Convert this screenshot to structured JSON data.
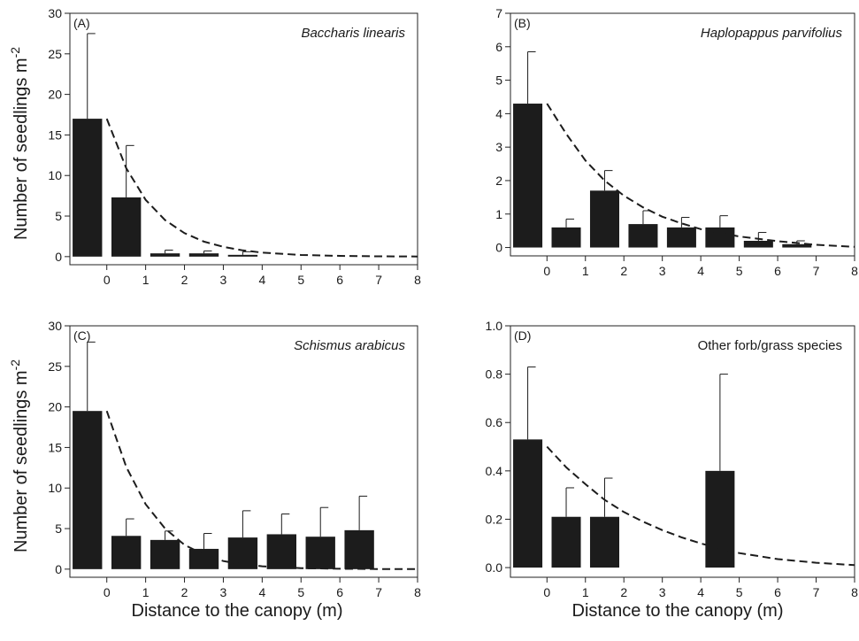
{
  "figure": {
    "ylabel": "Number of seedlings m-2",
    "ylabel_main": "Number of seedlings m",
    "ylabel_sup": "-2",
    "xlabel": "Distance to the canopy (m)"
  },
  "chart_data": [
    {
      "type": "bar",
      "panel_label": "(A)",
      "title": "Baccharis linearis",
      "title_italic": true,
      "x": [
        0,
        1,
        2,
        3,
        4
      ],
      "values": [
        17,
        7.3,
        0.4,
        0.4,
        0.2
      ],
      "errors": [
        10.5,
        6.4,
        0.4,
        0.3,
        0.4
      ],
      "fit_curve": [
        {
          "x": 0,
          "y": 17.0
        },
        {
          "x": 0.5,
          "y": 10.9
        },
        {
          "x": 1,
          "y": 7.0
        },
        {
          "x": 1.5,
          "y": 4.5
        },
        {
          "x": 2,
          "y": 2.9
        },
        {
          "x": 2.5,
          "y": 1.85
        },
        {
          "x": 3,
          "y": 1.2
        },
        {
          "x": 3.5,
          "y": 0.77
        },
        {
          "x": 4,
          "y": 0.5
        },
        {
          "x": 5,
          "y": 0.2
        },
        {
          "x": 6,
          "y": 0.09
        },
        {
          "x": 7,
          "y": 0.04
        },
        {
          "x": 8,
          "y": 0.02
        }
      ],
      "xticks": [
        0,
        1,
        2,
        3,
        4,
        5,
        6,
        7,
        8
      ],
      "yticks": [
        0,
        5,
        10,
        15,
        20,
        25,
        30
      ],
      "xlim": [
        -0.95,
        8
      ],
      "ylim": [
        -1,
        30
      ]
    },
    {
      "type": "bar",
      "panel_label": "(B)",
      "title": "Haplopappus parvifolius",
      "title_italic": true,
      "x": [
        0,
        1,
        2,
        3,
        4,
        5,
        6,
        7
      ],
      "values": [
        4.3,
        0.6,
        1.7,
        0.7,
        0.6,
        0.6,
        0.2,
        0.1
      ],
      "errors": [
        1.55,
        0.25,
        0.6,
        0.4,
        0.3,
        0.35,
        0.25,
        0.1
      ],
      "fit_curve": [
        {
          "x": 0,
          "y": 4.3
        },
        {
          "x": 0.5,
          "y": 3.4
        },
        {
          "x": 1,
          "y": 2.6
        },
        {
          "x": 1.5,
          "y": 2.0
        },
        {
          "x": 2,
          "y": 1.55
        },
        {
          "x": 2.5,
          "y": 1.2
        },
        {
          "x": 3,
          "y": 0.92
        },
        {
          "x": 3.5,
          "y": 0.72
        },
        {
          "x": 4,
          "y": 0.55
        },
        {
          "x": 5,
          "y": 0.33
        },
        {
          "x": 6,
          "y": 0.19
        },
        {
          "x": 7,
          "y": 0.08
        },
        {
          "x": 8,
          "y": 0.02
        }
      ],
      "xticks": [
        0,
        1,
        2,
        3,
        4,
        5,
        6,
        7,
        8
      ],
      "yticks": [
        0,
        1,
        2,
        3,
        4,
        5,
        6,
        7
      ],
      "xlim": [
        -0.95,
        8
      ],
      "ylim": [
        -0.25,
        7
      ]
    },
    {
      "type": "bar",
      "panel_label": "(C)",
      "title": "Schismus arabicus",
      "title_italic": true,
      "x": [
        0,
        1,
        2,
        3,
        4,
        5,
        6,
        7
      ],
      "values": [
        19.5,
        4.1,
        3.6,
        2.5,
        3.9,
        4.3,
        4.0,
        4.8
      ],
      "errors": [
        8.5,
        2.1,
        1.1,
        1.9,
        3.3,
        2.5,
        3.6,
        4.2
      ],
      "fit_curve": [
        {
          "x": 0,
          "y": 19.5
        },
        {
          "x": 0.5,
          "y": 12.6
        },
        {
          "x": 1,
          "y": 8.0
        },
        {
          "x": 1.5,
          "y": 5.0
        },
        {
          "x": 2,
          "y": 3.0
        },
        {
          "x": 2.5,
          "y": 1.8
        },
        {
          "x": 3,
          "y": 1.0
        },
        {
          "x": 3.5,
          "y": 0.6
        },
        {
          "x": 4,
          "y": 0.35
        },
        {
          "x": 5,
          "y": 0.12
        },
        {
          "x": 6,
          "y": 0.05
        },
        {
          "x": 7,
          "y": 0.02
        },
        {
          "x": 8,
          "y": 0.0
        }
      ],
      "xticks": [
        0,
        1,
        2,
        3,
        4,
        5,
        6,
        7,
        8
      ],
      "yticks": [
        0,
        5,
        10,
        15,
        20,
        25,
        30
      ],
      "xlim": [
        -0.95,
        8
      ],
      "ylim": [
        -1,
        30
      ]
    },
    {
      "type": "bar",
      "panel_label": "(D)",
      "title": "Other forb/grass species",
      "title_italic": false,
      "x": [
        0,
        1,
        2,
        5
      ],
      "values": [
        0.53,
        0.21,
        0.21,
        0.4
      ],
      "errors": [
        0.3,
        0.12,
        0.16,
        0.4
      ],
      "fit_curve": [
        {
          "x": 0,
          "y": 0.5
        },
        {
          "x": 0.5,
          "y": 0.415
        },
        {
          "x": 1,
          "y": 0.345
        },
        {
          "x": 1.5,
          "y": 0.28
        },
        {
          "x": 2,
          "y": 0.23
        },
        {
          "x": 2.5,
          "y": 0.19
        },
        {
          "x": 3,
          "y": 0.155
        },
        {
          "x": 3.5,
          "y": 0.125
        },
        {
          "x": 4,
          "y": 0.1
        },
        {
          "x": 5,
          "y": 0.06
        },
        {
          "x": 6,
          "y": 0.035
        },
        {
          "x": 7,
          "y": 0.02
        },
        {
          "x": 8,
          "y": 0.01
        }
      ],
      "xticks": [
        0,
        1,
        2,
        3,
        4,
        5,
        6,
        7,
        8
      ],
      "yticks": [
        0.0,
        0.2,
        0.4,
        0.6,
        0.8,
        1.0
      ],
      "ytick_decimals": 1,
      "xlim": [
        -0.95,
        8
      ],
      "ylim": [
        -0.04,
        1.0
      ]
    }
  ]
}
